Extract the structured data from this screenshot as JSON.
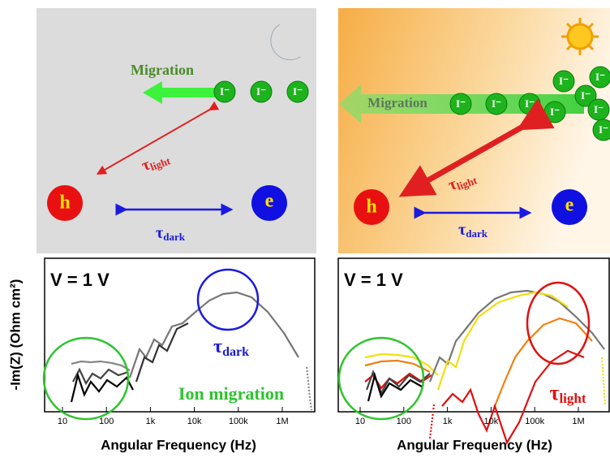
{
  "left_panel": {
    "migration_label": "Migration",
    "ions": [
      "I⁻",
      "I⁻",
      "I⁻"
    ],
    "tau_light": {
      "symbol": "τ",
      "subscript": "light"
    },
    "tau_dark": {
      "symbol": "τ",
      "subscript": "dark"
    },
    "hole": "h",
    "electron": "e"
  },
  "right_panel": {
    "migration_label": "Migration",
    "ions": [
      "I⁻",
      "I⁻",
      "I⁻",
      "I⁻",
      "I⁻",
      "I⁻",
      "I⁻",
      "I⁻",
      "I⁻"
    ],
    "tau_light": {
      "symbol": "τ",
      "subscript": "light"
    },
    "tau_dark": {
      "symbol": "τ",
      "subscript": "dark"
    },
    "hole": "h",
    "electron": "e"
  },
  "plots": {
    "y_label": "-Im(Z) (Ohm cm²)",
    "x_label": "Angular Frequency (Hz)",
    "x_tick_labels": [
      "10",
      "100",
      "1k",
      "10k",
      "100k",
      "1M"
    ],
    "left": {
      "voltage": "V = 1 V",
      "tau_dark": {
        "symbol": "τ",
        "subscript": "dark"
      },
      "ion_migration": "Ion migration"
    },
    "right": {
      "voltage": "V = 1 V",
      "tau_light": {
        "symbol": "τ",
        "subscript": "light"
      }
    }
  }
}
